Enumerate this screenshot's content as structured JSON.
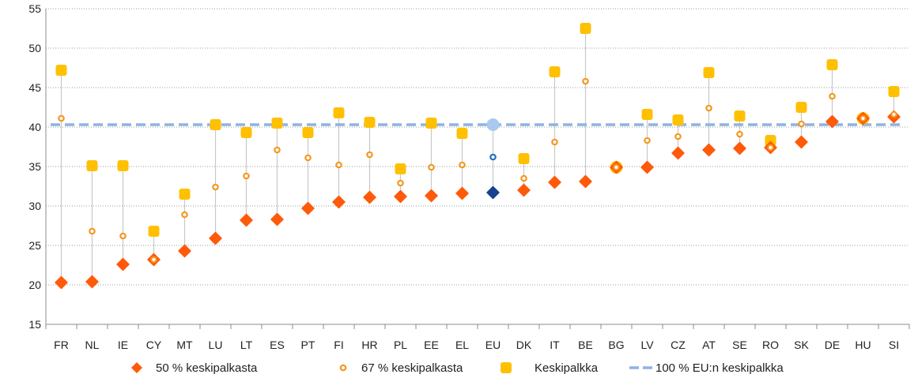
{
  "chart_data": {
    "type": "scatter",
    "title": "",
    "xlabel": "",
    "ylabel": "",
    "ylim": [
      15,
      55
    ],
    "yticks": [
      15,
      20,
      25,
      30,
      35,
      40,
      45,
      50,
      55
    ],
    "grid": "horizontal",
    "legend_position": "bottom",
    "categories": [
      "FR",
      "NL",
      "IE",
      "CY",
      "MT",
      "LU",
      "LT",
      "ES",
      "PT",
      "FI",
      "HR",
      "PL",
      "EE",
      "EL",
      "EU",
      "DK",
      "IT",
      "BE",
      "BG",
      "LV",
      "CZ",
      "AT",
      "SE",
      "RO",
      "SK",
      "DE",
      "HU",
      "SI"
    ],
    "series": [
      {
        "name": "50 % keskipalkasta",
        "marker": "diamond",
        "color": "#ff5a0a",
        "values": [
          20.3,
          20.4,
          22.6,
          23.2,
          24.3,
          25.9,
          28.2,
          28.3,
          29.7,
          30.5,
          31.1,
          31.2,
          31.3,
          31.6,
          31.7,
          32.0,
          33.0,
          33.1,
          34.9,
          34.9,
          36.7,
          37.1,
          37.3,
          37.4,
          38.1,
          40.7,
          41.1,
          41.3
        ]
      },
      {
        "name": "67 % keskipalkasta",
        "marker": "small-circle",
        "color": "#f4971e",
        "values": [
          41.1,
          26.8,
          26.2,
          23.2,
          28.9,
          32.4,
          33.8,
          37.1,
          36.1,
          35.2,
          36.5,
          32.9,
          34.9,
          35.2,
          36.2,
          33.5,
          38.1,
          45.8,
          34.9,
          38.3,
          38.8,
          42.4,
          39.1,
          37.4,
          40.4,
          43.9,
          41.1,
          41.6
        ]
      },
      {
        "name": "Keskipalkka",
        "marker": "rounded-square",
        "color": "#ffc000",
        "values": [
          47.2,
          35.1,
          35.1,
          26.8,
          31.5,
          40.3,
          39.3,
          40.5,
          39.3,
          41.8,
          40.6,
          34.7,
          40.5,
          39.2,
          40.3,
          36.0,
          47.0,
          52.5,
          34.9,
          41.6,
          40.9,
          46.9,
          41.4,
          38.3,
          42.5,
          47.9,
          41.1,
          44.5
        ]
      },
      {
        "name": "100 % EU:n keskipalkka",
        "marker": "dashed-line",
        "color": "#8db4e2",
        "value": 40.3
      }
    ],
    "highlight": {
      "category": "EU",
      "colors": {
        "50 % keskipalkasta": "#17428f",
        "67 % keskipalkasta": "#1f6fc0",
        "Keskipalkka": "#a9c9ee"
      }
    }
  }
}
